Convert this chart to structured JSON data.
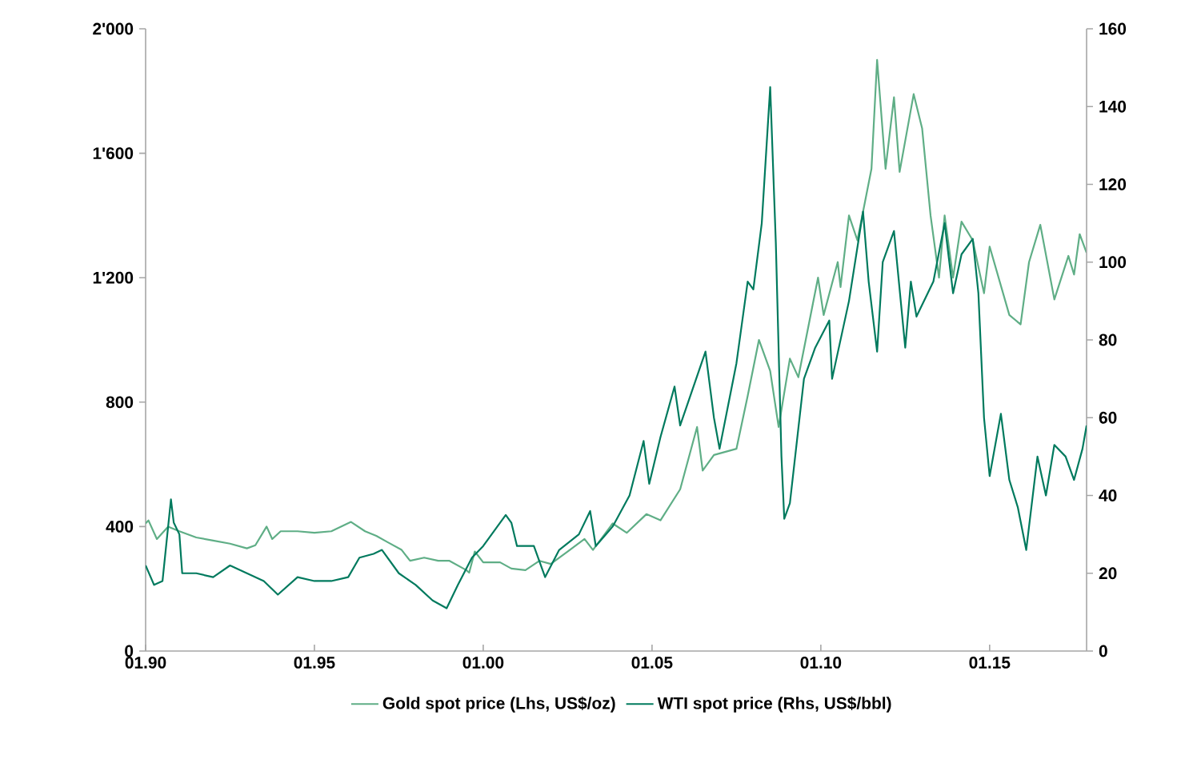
{
  "chart_data": {
    "type": "line",
    "legend": "bottom",
    "xlim": [
      "1990-01",
      "2017-11-15"
    ],
    "xticks": [
      {
        "value": "1990-01",
        "label": "01.90"
      },
      {
        "value": "1995-01",
        "label": "01.95"
      },
      {
        "value": "2000-01",
        "label": "01.00"
      },
      {
        "value": "2005-01",
        "label": "01.05"
      },
      {
        "value": "2010-01",
        "label": "01.10"
      },
      {
        "value": "2015-01",
        "label": "01.15"
      }
    ],
    "ylim": [
      0,
      2000
    ],
    "yticks": [
      0,
      400,
      800,
      {
        "value": 1200,
        "label": "1'200"
      },
      {
        "value": 1600,
        "label": "1'600"
      },
      {
        "value": 2000,
        "label": "2'000"
      }
    ],
    "y2lim": [
      0,
      160
    ],
    "y2ticks": [
      0,
      20,
      40,
      60,
      80,
      100,
      120,
      140,
      160
    ],
    "series": [
      {
        "name": "Gold spot price (Lhs, US$/oz)",
        "color": "#5fae86",
        "x": [
          "1990-01",
          "1990-02",
          "1990-05",
          "1990-09",
          "1991-01",
          "1991-07",
          "1992-01",
          "1992-07",
          "1993-01",
          "1993-04",
          "1993-08",
          "1993-10",
          "1994-01",
          "1994-07",
          "1995-01",
          "1995-07",
          "1996-02",
          "1996-07",
          "1996-11",
          "1997-03",
          "1997-08",
          "1997-11",
          "1998-04",
          "1998-09",
          "1999-01",
          "1999-07",
          "1999-08",
          "1999-10",
          "2000-01",
          "2000-07",
          "2000-11",
          "2001-04",
          "2001-09",
          "2002-01",
          "2002-07",
          "2003-01",
          "2003-04",
          "2003-11",
          "2004-04",
          "2004-11",
          "2005-04",
          "2005-11",
          "2006-05",
          "2006-07",
          "2006-11",
          "2007-07",
          "2007-11",
          "2008-03",
          "2008-07",
          "2008-10",
          "2009-02",
          "2009-05",
          "2009-12",
          "2010-02",
          "2010-07",
          "2010-08",
          "2010-11",
          "2011-02",
          "2011-07",
          "2011-09",
          "2011-12",
          "2012-03",
          "2012-05",
          "2012-10",
          "2013-01",
          "2013-04",
          "2013-07",
          "2013-09",
          "2013-12",
          "2014-03",
          "2014-07",
          "2014-11",
          "2015-01",
          "2015-08",
          "2015-12",
          "2016-03",
          "2016-07",
          "2016-12",
          "2017-05",
          "2017-07",
          "2017-09",
          "2017-11-15"
        ],
        "values": [
          410,
          420,
          360,
          400,
          385,
          365,
          355,
          345,
          330,
          340,
          400,
          360,
          385,
          385,
          380,
          385,
          415,
          385,
          370,
          350,
          325,
          290,
          300,
          290,
          290,
          260,
          252,
          320,
          285,
          285,
          265,
          260,
          290,
          280,
          320,
          360,
          325,
          410,
          380,
          440,
          420,
          520,
          720,
          580,
          630,
          650,
          820,
          1000,
          900,
          720,
          940,
          880,
          1200,
          1080,
          1250,
          1170,
          1400,
          1320,
          1550,
          1900,
          1550,
          1780,
          1540,
          1790,
          1680,
          1400,
          1200,
          1400,
          1200,
          1380,
          1320,
          1150,
          1300,
          1080,
          1050,
          1250,
          1370,
          1130,
          1270,
          1210,
          1340,
          1280
        ]
      },
      {
        "name": "WTI spot price (Rhs, US$/bbl)",
        "color": "#007a5e",
        "axis": "y2",
        "x": [
          "1990-01",
          "1990-04",
          "1990-07",
          "1990-10",
          "1990-11",
          "1991-01",
          "1991-02",
          "1991-07",
          "1992-01",
          "1992-07",
          "1993-01",
          "1993-07",
          "1993-12",
          "1994-07",
          "1995-01",
          "1995-07",
          "1996-01",
          "1996-05",
          "1996-10",
          "1997-01",
          "1997-07",
          "1998-01",
          "1998-07",
          "1998-12",
          "1999-04",
          "1999-09",
          "2000-01",
          "2000-09",
          "2000-11",
          "2001-01",
          "2001-07",
          "2001-11",
          "2002-04",
          "2002-11",
          "2003-03",
          "2003-05",
          "2003-11",
          "2004-05",
          "2004-10",
          "2004-12",
          "2005-04",
          "2005-09",
          "2005-11",
          "2006-08",
          "2006-11",
          "2007-01",
          "2007-07",
          "2007-11",
          "2008-01",
          "2008-04",
          "2008-07",
          "2008-09",
          "2008-11",
          "2008-12",
          "2009-02",
          "2009-07",
          "2009-11",
          "2010-04",
          "2010-05",
          "2010-11",
          "2011-04",
          "2011-06",
          "2011-09",
          "2011-11",
          "2012-03",
          "2012-07",
          "2012-09",
          "2012-11",
          "2013-05",
          "2013-09",
          "2013-12",
          "2014-03",
          "2014-07",
          "2014-09",
          "2014-11",
          "2015-01",
          "2015-05",
          "2015-08",
          "2015-11",
          "2016-02",
          "2016-06",
          "2016-09",
          "2016-12",
          "2017-04",
          "2017-07",
          "2017-10",
          "2017-11-15"
        ],
        "values": [
          22,
          17,
          18,
          39,
          33,
          30,
          20,
          20,
          19,
          22,
          20,
          18,
          14.5,
          19,
          18,
          18,
          19,
          24,
          25,
          26,
          20,
          17,
          13,
          11,
          17,
          24,
          27,
          35,
          33,
          27,
          27,
          19,
          26,
          30,
          36,
          27,
          32,
          40,
          54,
          43,
          55,
          68,
          58,
          77,
          60,
          52,
          74,
          95,
          93,
          110,
          145,
          105,
          50,
          34,
          38,
          70,
          78,
          85,
          70,
          90,
          113,
          95,
          77,
          100,
          108,
          78,
          95,
          86,
          95,
          110,
          92,
          102,
          106,
          92,
          60,
          45,
          61,
          44,
          37,
          26,
          50,
          40,
          53,
          50,
          44,
          52,
          58
        ]
      }
    ]
  }
}
